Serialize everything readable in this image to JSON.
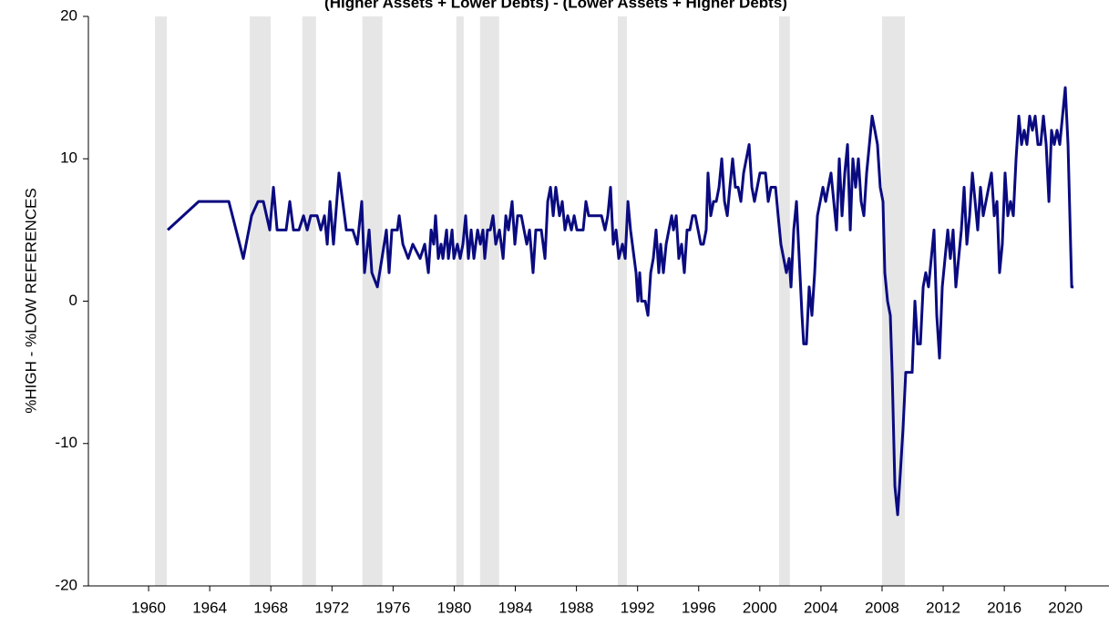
{
  "chart_data": {
    "type": "line",
    "title": "(Higher Assets + Lower Debts) - (Lower Assets + Higher Debts)",
    "ylabel": "%HIGH - %LOW REFERENCES",
    "xlim": [
      1956.06,
      2022.85
    ],
    "ylim": [
      -20,
      20
    ],
    "xticks": [
      1960,
      1964,
      1968,
      1972,
      1976,
      1980,
      1984,
      1988,
      1992,
      1996,
      2000,
      2004,
      2008,
      2012,
      2016,
      2020
    ],
    "yticks": [
      -20,
      -10,
      0,
      10,
      20
    ],
    "grid": false,
    "shaded_regions": [
      [
        1960.42,
        1961.19
      ],
      [
        1966.62,
        1967.99
      ],
      [
        1970.06,
        1970.96
      ],
      [
        1973.99,
        1975.3
      ],
      [
        1980.14,
        1980.62
      ],
      [
        1981.69,
        1982.94
      ],
      [
        1990.7,
        1991.3
      ],
      [
        2001.26,
        2001.97
      ],
      [
        2008.0,
        2009.49
      ]
    ],
    "shade_color": "#e6e6e6",
    "x": [
      1961.25,
      1963.28,
      1965.25,
      1966.2,
      1966.74,
      1967.16,
      1967.51,
      1967.93,
      1968.17,
      1968.41,
      1969.0,
      1969.24,
      1969.48,
      1969.84,
      1970.14,
      1970.38,
      1970.61,
      1971.03,
      1971.27,
      1971.51,
      1971.69,
      1971.87,
      1972.1,
      1972.46,
      1972.94,
      1973.36,
      1973.66,
      1973.95,
      1974.13,
      1974.43,
      1974.61,
      1974.97,
      1975.27,
      1975.56,
      1975.74,
      1975.92,
      1976.28,
      1976.4,
      1976.64,
      1976.99,
      1977.29,
      1977.77,
      1978.07,
      1978.31,
      1978.49,
      1978.66,
      1978.78,
      1978.96,
      1979.14,
      1979.26,
      1979.5,
      1979.62,
      1979.86,
      1979.98,
      1980.21,
      1980.39,
      1980.57,
      1980.75,
      1980.93,
      1981.11,
      1981.29,
      1981.53,
      1981.71,
      1981.88,
      1982.0,
      1982.18,
      1982.36,
      1982.54,
      1982.72,
      1982.96,
      1983.2,
      1983.38,
      1983.55,
      1983.79,
      1983.97,
      1984.15,
      1984.39,
      1984.75,
      1984.93,
      1985.16,
      1985.34,
      1985.7,
      1985.94,
      1986.12,
      1986.3,
      1986.48,
      1986.65,
      1986.89,
      1987.07,
      1987.25,
      1987.43,
      1987.67,
      1987.85,
      1988.03,
      1988.44,
      1988.62,
      1988.8,
      1989.16,
      1989.64,
      1989.87,
      1990.05,
      1990.23,
      1990.41,
      1990.59,
      1990.77,
      1991.01,
      1991.19,
      1991.37,
      1991.54,
      1991.78,
      1991.9,
      1992.02,
      1992.14,
      1992.26,
      1992.5,
      1992.68,
      1992.86,
      1993.03,
      1993.21,
      1993.39,
      1993.51,
      1993.69,
      1993.87,
      1994.05,
      1994.23,
      1994.35,
      1994.53,
      1994.7,
      1994.88,
      1995.06,
      1995.24,
      1995.42,
      1995.6,
      1995.78,
      1995.96,
      1996.14,
      1996.31,
      1996.49,
      1996.61,
      1996.79,
      1996.97,
      1997.15,
      1997.33,
      1997.51,
      1997.69,
      1997.87,
      1998.04,
      1998.22,
      1998.4,
      1998.58,
      1998.76,
      1998.94,
      1999.12,
      1999.3,
      1999.48,
      1999.65,
      1999.83,
      2000.01,
      2000.19,
      2000.37,
      2000.55,
      2000.73,
      2001.03,
      2001.2,
      2001.38,
      2001.56,
      2001.74,
      2001.92,
      2002.04,
      2002.22,
      2002.4,
      2002.58,
      2002.76,
      2002.87,
      2003.05,
      2003.23,
      2003.41,
      2003.59,
      2003.77,
      2003.95,
      2004.13,
      2004.31,
      2004.48,
      2004.66,
      2004.84,
      2005.02,
      2005.2,
      2005.38,
      2005.56,
      2005.74,
      2005.92,
      2006.09,
      2006.27,
      2006.45,
      2006.63,
      2006.81,
      2006.99,
      2007.17,
      2007.35,
      2007.53,
      2007.7,
      2007.88,
      2008.06,
      2008.18,
      2008.36,
      2008.54,
      2008.66,
      2008.84,
      2009.02,
      2009.2,
      2009.37,
      2009.55,
      2009.79,
      2009.97,
      2010.15,
      2010.33,
      2010.51,
      2010.69,
      2010.86,
      2011.04,
      2011.22,
      2011.4,
      2011.58,
      2011.76,
      2011.94,
      2012.12,
      2012.3,
      2012.47,
      2012.65,
      2012.83,
      2013.01,
      2013.19,
      2013.37,
      2013.55,
      2013.73,
      2013.91,
      2014.09,
      2014.26,
      2014.44,
      2014.62,
      2014.8,
      2014.98,
      2015.16,
      2015.34,
      2015.52,
      2015.69,
      2015.87,
      2016.05,
      2016.23,
      2016.41,
      2016.59,
      2016.77,
      2016.95,
      2017.13,
      2017.3,
      2017.48,
      2017.66,
      2017.84,
      2018.02,
      2018.2,
      2018.38,
      2018.56,
      2018.74,
      2018.92,
      2019.09,
      2019.27,
      2019.45,
      2019.63,
      2019.81,
      2019.99,
      2020.17,
      2020.41,
      2020.53
    ],
    "series": [
      {
        "color": "#0a0a80",
        "values": [
          5,
          7,
          7,
          3,
          6,
          7,
          7,
          5,
          8,
          5,
          5,
          7,
          5,
          5,
          6,
          5,
          6,
          6,
          5,
          6,
          4,
          7,
          4,
          9,
          5,
          5,
          4,
          7,
          2,
          5,
          2,
          1,
          3,
          5,
          2,
          5,
          5,
          6,
          4,
          3,
          4,
          3,
          4,
          2,
          5,
          4,
          6,
          3,
          4,
          3,
          5,
          3,
          5,
          3,
          4,
          3,
          4,
          6,
          3,
          5,
          3,
          5,
          4,
          5,
          3,
          5,
          5,
          6,
          4,
          5,
          3,
          6,
          5,
          7,
          4,
          6,
          6,
          4,
          5,
          2,
          5,
          5,
          3,
          7,
          8,
          6,
          8,
          6,
          7,
          5,
          6,
          5,
          6,
          5,
          5,
          7,
          6,
          6,
          6,
          5,
          6,
          8,
          4,
          5,
          3,
          4,
          3,
          7,
          5,
          3,
          2,
          0,
          2,
          0,
          0,
          -1,
          2,
          3,
          5,
          2,
          4,
          2,
          4,
          5,
          6,
          5,
          6,
          3,
          4,
          2,
          5,
          5,
          6,
          6,
          5,
          4,
          4,
          5,
          9,
          6,
          7,
          7,
          8,
          10,
          7,
          6,
          8,
          10,
          8,
          8,
          7,
          9,
          10,
          11,
          8,
          7,
          8,
          9,
          9,
          9,
          7,
          8,
          8,
          6,
          4,
          3,
          2,
          3,
          1,
          5,
          7,
          3,
          -1,
          -3,
          -3,
          1,
          -1,
          2,
          6,
          7,
          8,
          7,
          8,
          9,
          7,
          5,
          10,
          6,
          9,
          11,
          5,
          10,
          8,
          10,
          7,
          6,
          9,
          11,
          13,
          12,
          11,
          8,
          7,
          2,
          0,
          -1,
          -5,
          -13,
          -15,
          -12,
          -9,
          -5,
          -5,
          -5,
          0,
          -3,
          -3,
          1,
          2,
          1,
          3,
          5,
          -1,
          -4,
          1,
          3,
          5,
          3,
          5,
          1,
          3,
          5,
          8,
          4,
          6,
          9,
          7,
          5,
          8,
          6,
          7,
          8,
          9,
          6,
          7,
          2,
          4,
          9,
          6,
          7,
          6,
          10,
          13,
          11,
          12,
          11,
          13,
          12,
          13,
          11,
          11,
          13,
          11,
          7,
          12,
          11,
          12,
          11,
          13,
          15,
          11,
          1,
          1
        ]
      }
    ]
  }
}
